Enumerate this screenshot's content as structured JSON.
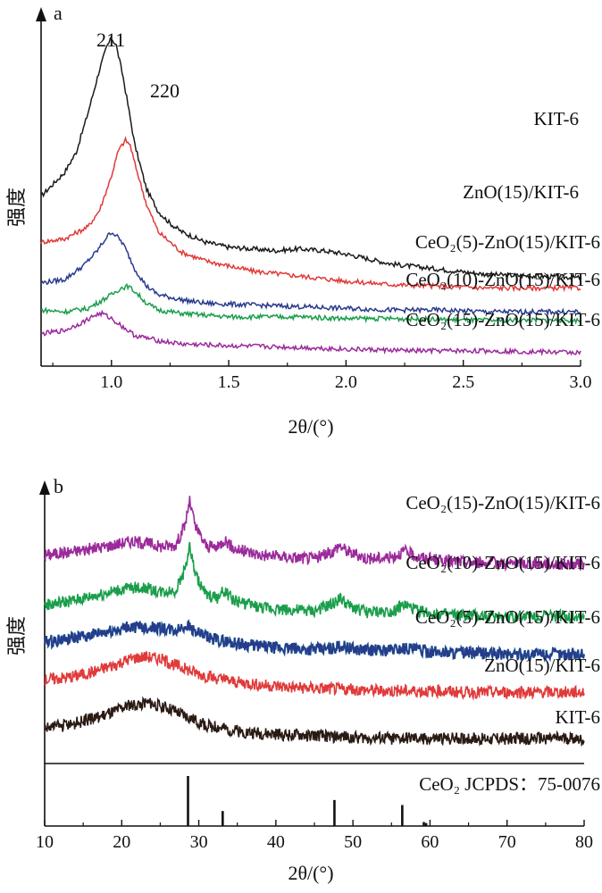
{
  "colors": {
    "black": "#1a1a1a",
    "red": "#e03a3a",
    "navy": "#283a8c",
    "green": "#1a9e4b",
    "purple": "#9b2a9b",
    "dark": "#2a1a14",
    "teal": "#2a8aa0"
  },
  "chart_data": [
    {
      "type": "line",
      "panel": "a",
      "xlabel": "2θ/(°)",
      "ylabel": "强度",
      "xlim": [
        0.7,
        3.0
      ],
      "x_ticks": [
        "1.0",
        "1.5",
        "2.0",
        "2.5",
        "3.0"
      ],
      "annotations": [
        "211",
        "220"
      ],
      "series": [
        {
          "name": "KIT-6",
          "color": "black",
          "x": [
            0.7,
            0.8,
            0.85,
            0.9,
            0.95,
            0.98,
            1.0,
            1.02,
            1.05,
            1.1,
            1.15,
            1.2,
            1.25,
            1.3,
            1.4,
            1.5,
            1.6,
            1.7,
            1.8,
            1.9,
            2.0,
            2.2,
            2.4,
            2.6,
            2.8,
            3.0
          ],
          "y": [
            10.0,
            11.4,
            12.6,
            14.9,
            17.5,
            18.8,
            19.3,
            18.9,
            17.0,
            13.0,
            10.4,
            9.1,
            8.4,
            7.9,
            7.3,
            7.0,
            6.9,
            6.8,
            6.9,
            6.8,
            6.6,
            6.0,
            5.7,
            5.4,
            5.3,
            5.2
          ]
        },
        {
          "name": "ZnO(15)/KIT-6",
          "color": "red",
          "x": [
            0.7,
            0.8,
            0.9,
            0.95,
            1.0,
            1.03,
            1.06,
            1.08,
            1.1,
            1.15,
            1.2,
            1.3,
            1.4,
            1.5,
            1.6,
            1.8,
            2.0,
            2.2,
            2.4,
            2.6,
            2.8,
            3.0
          ],
          "y": [
            7.3,
            7.5,
            8.2,
            9.2,
            11.2,
            12.7,
            13.3,
            13.0,
            11.9,
            9.5,
            7.9,
            6.7,
            6.2,
            5.9,
            5.6,
            5.3,
            5.0,
            4.8,
            4.7,
            4.6,
            4.6,
            4.6
          ]
        },
        {
          "name": "CeO₂(5)-ZnO(15)/KIT-6",
          "color": "navy",
          "x": [
            0.7,
            0.8,
            0.88,
            0.94,
            0.98,
            1.0,
            1.02,
            1.05,
            1.1,
            1.15,
            1.2,
            1.3,
            1.4,
            1.6,
            1.8,
            2.0,
            2.2,
            2.4,
            2.6,
            2.8,
            3.0
          ],
          "y": [
            4.9,
            5.1,
            5.9,
            6.8,
            7.6,
            7.9,
            7.7,
            7.2,
            5.7,
            4.7,
            4.2,
            3.9,
            3.7,
            3.6,
            3.5,
            3.4,
            3.3,
            3.3,
            3.2,
            3.2,
            3.2
          ]
        },
        {
          "name": "CeO₂(10)-ZnO(15)/KIT-6",
          "color": "green",
          "x": [
            0.7,
            0.8,
            0.9,
            0.95,
            1.0,
            1.04,
            1.07,
            1.1,
            1.15,
            1.2,
            1.3,
            1.5,
            1.8,
            2.0,
            2.2,
            2.5,
            2.8,
            3.0
          ],
          "y": [
            3.3,
            3.2,
            3.4,
            3.8,
            4.2,
            4.6,
            4.7,
            4.4,
            3.7,
            3.3,
            3.1,
            2.9,
            2.9,
            2.8,
            2.8,
            2.7,
            2.7,
            2.7
          ]
        },
        {
          "name": "CeO₂(15)-ZnO(15)/KIT-6",
          "color": "purple",
          "x": [
            0.7,
            0.8,
            0.88,
            0.93,
            0.96,
            1.0,
            1.05,
            1.1,
            1.2,
            1.3,
            1.5,
            1.8,
            2.0,
            2.3,
            2.6,
            3.0
          ],
          "y": [
            1.9,
            2.1,
            2.6,
            3.0,
            3.1,
            2.8,
            2.3,
            1.8,
            1.5,
            1.3,
            1.2,
            1.1,
            1.0,
            0.9,
            0.9,
            0.8
          ]
        }
      ]
    },
    {
      "type": "line",
      "panel": "b",
      "xlabel": "2θ/(°)",
      "ylabel": "强度",
      "xlim": [
        10,
        80
      ],
      "x_ticks": [
        "10",
        "20",
        "30",
        "40",
        "50",
        "60",
        "70",
        "80"
      ],
      "series": [
        {
          "name": "CeO₂(15)-ZnO(15)/KIT-6",
          "color": "purple",
          "x": [
            10,
            14,
            18,
            21,
            23,
            25,
            27,
            28.2,
            28.8,
            29.6,
            31,
            32.5,
            33.3,
            34.5,
            38,
            42,
            45,
            47.5,
            48.2,
            49.5,
            52,
            55,
            56.6,
            58.5,
            62,
            66,
            70,
            75,
            80
          ],
          "y": [
            16.3,
            16.6,
            17.0,
            17.4,
            17.3,
            17.0,
            17.1,
            18.7,
            20.7,
            18.5,
            17.0,
            16.9,
            17.6,
            16.8,
            16.3,
            16.1,
            16.0,
            16.6,
            17.1,
            16.5,
            16.0,
            16.1,
            16.6,
            16.1,
            15.8,
            15.7,
            15.6,
            15.6,
            15.5
          ]
        },
        {
          "name": "CeO₂(10)-ZnO(15)/KIT-6",
          "color": "green",
          "x": [
            10,
            14,
            18,
            21,
            23,
            25,
            27,
            28.2,
            28.8,
            29.6,
            31,
            32.5,
            33.3,
            34.5,
            38,
            42,
            45,
            47.5,
            48.2,
            49.5,
            52,
            55,
            56.6,
            58.5,
            62,
            66,
            70,
            75,
            80
          ],
          "y": [
            12.2,
            12.6,
            13.2,
            13.6,
            13.6,
            13.3,
            13.4,
            15.1,
            17.0,
            14.6,
            13.0,
            12.8,
            13.4,
            12.6,
            12.0,
            11.8,
            11.7,
            12.3,
            12.8,
            12.1,
            11.6,
            11.7,
            12.2,
            11.7,
            11.4,
            11.3,
            11.3,
            11.3,
            11.3
          ]
        },
        {
          "name": "CeO₂(5)-ZnO(15)/KIT-6",
          "color": "navy",
          "x": [
            10,
            14,
            18,
            21,
            23,
            25,
            27,
            28.5,
            29.6,
            31,
            33,
            36,
            40,
            44,
            47,
            48.5,
            50,
            54,
            57,
            60,
            65,
            70,
            75,
            80
          ],
          "y": [
            9.2,
            9.5,
            10.0,
            10.4,
            10.4,
            10.3,
            10.1,
            10.6,
            10.0,
            9.6,
            9.3,
            9.0,
            8.7,
            8.6,
            8.6,
            8.9,
            8.6,
            8.5,
            8.7,
            8.4,
            8.3,
            8.2,
            8.2,
            8.2
          ]
        },
        {
          "name": "ZnO(15)/KIT-6",
          "color": "red",
          "x": [
            10,
            13,
            16,
            19,
            21,
            23,
            25,
            27,
            29,
            31,
            34,
            38,
            42,
            46,
            50,
            55,
            60,
            65,
            70,
            75,
            80
          ],
          "y": [
            6.1,
            6.3,
            6.7,
            7.3,
            7.8,
            8.0,
            7.8,
            7.3,
            6.8,
            6.4,
            6.0,
            5.7,
            5.5,
            5.4,
            5.3,
            5.2,
            5.2,
            5.1,
            5.1,
            5.1,
            5.1
          ]
        },
        {
          "name": "KIT-6",
          "color": "dark",
          "x": [
            10,
            13,
            16,
            19,
            21,
            23,
            25,
            27,
            29,
            31,
            34,
            38,
            42,
            46,
            50,
            55,
            60,
            65,
            70,
            75,
            80
          ],
          "y": [
            2.2,
            2.4,
            2.9,
            3.5,
            4.0,
            4.2,
            4.0,
            3.5,
            2.9,
            2.4,
            2.0,
            1.7,
            1.6,
            1.5,
            1.4,
            1.3,
            1.3,
            1.3,
            1.3,
            1.3,
            1.3
          ]
        }
      ]
    },
    {
      "type": "bar",
      "panel": "b-reference",
      "label": "CeO₂ JCPDS：75-0076",
      "x": [
        28.6,
        33.1,
        47.6,
        56.4,
        59.2,
        59.5
      ],
      "values": [
        100,
        30,
        52,
        42,
        8,
        6
      ]
    }
  ],
  "panel_letters": [
    "a",
    "b"
  ]
}
